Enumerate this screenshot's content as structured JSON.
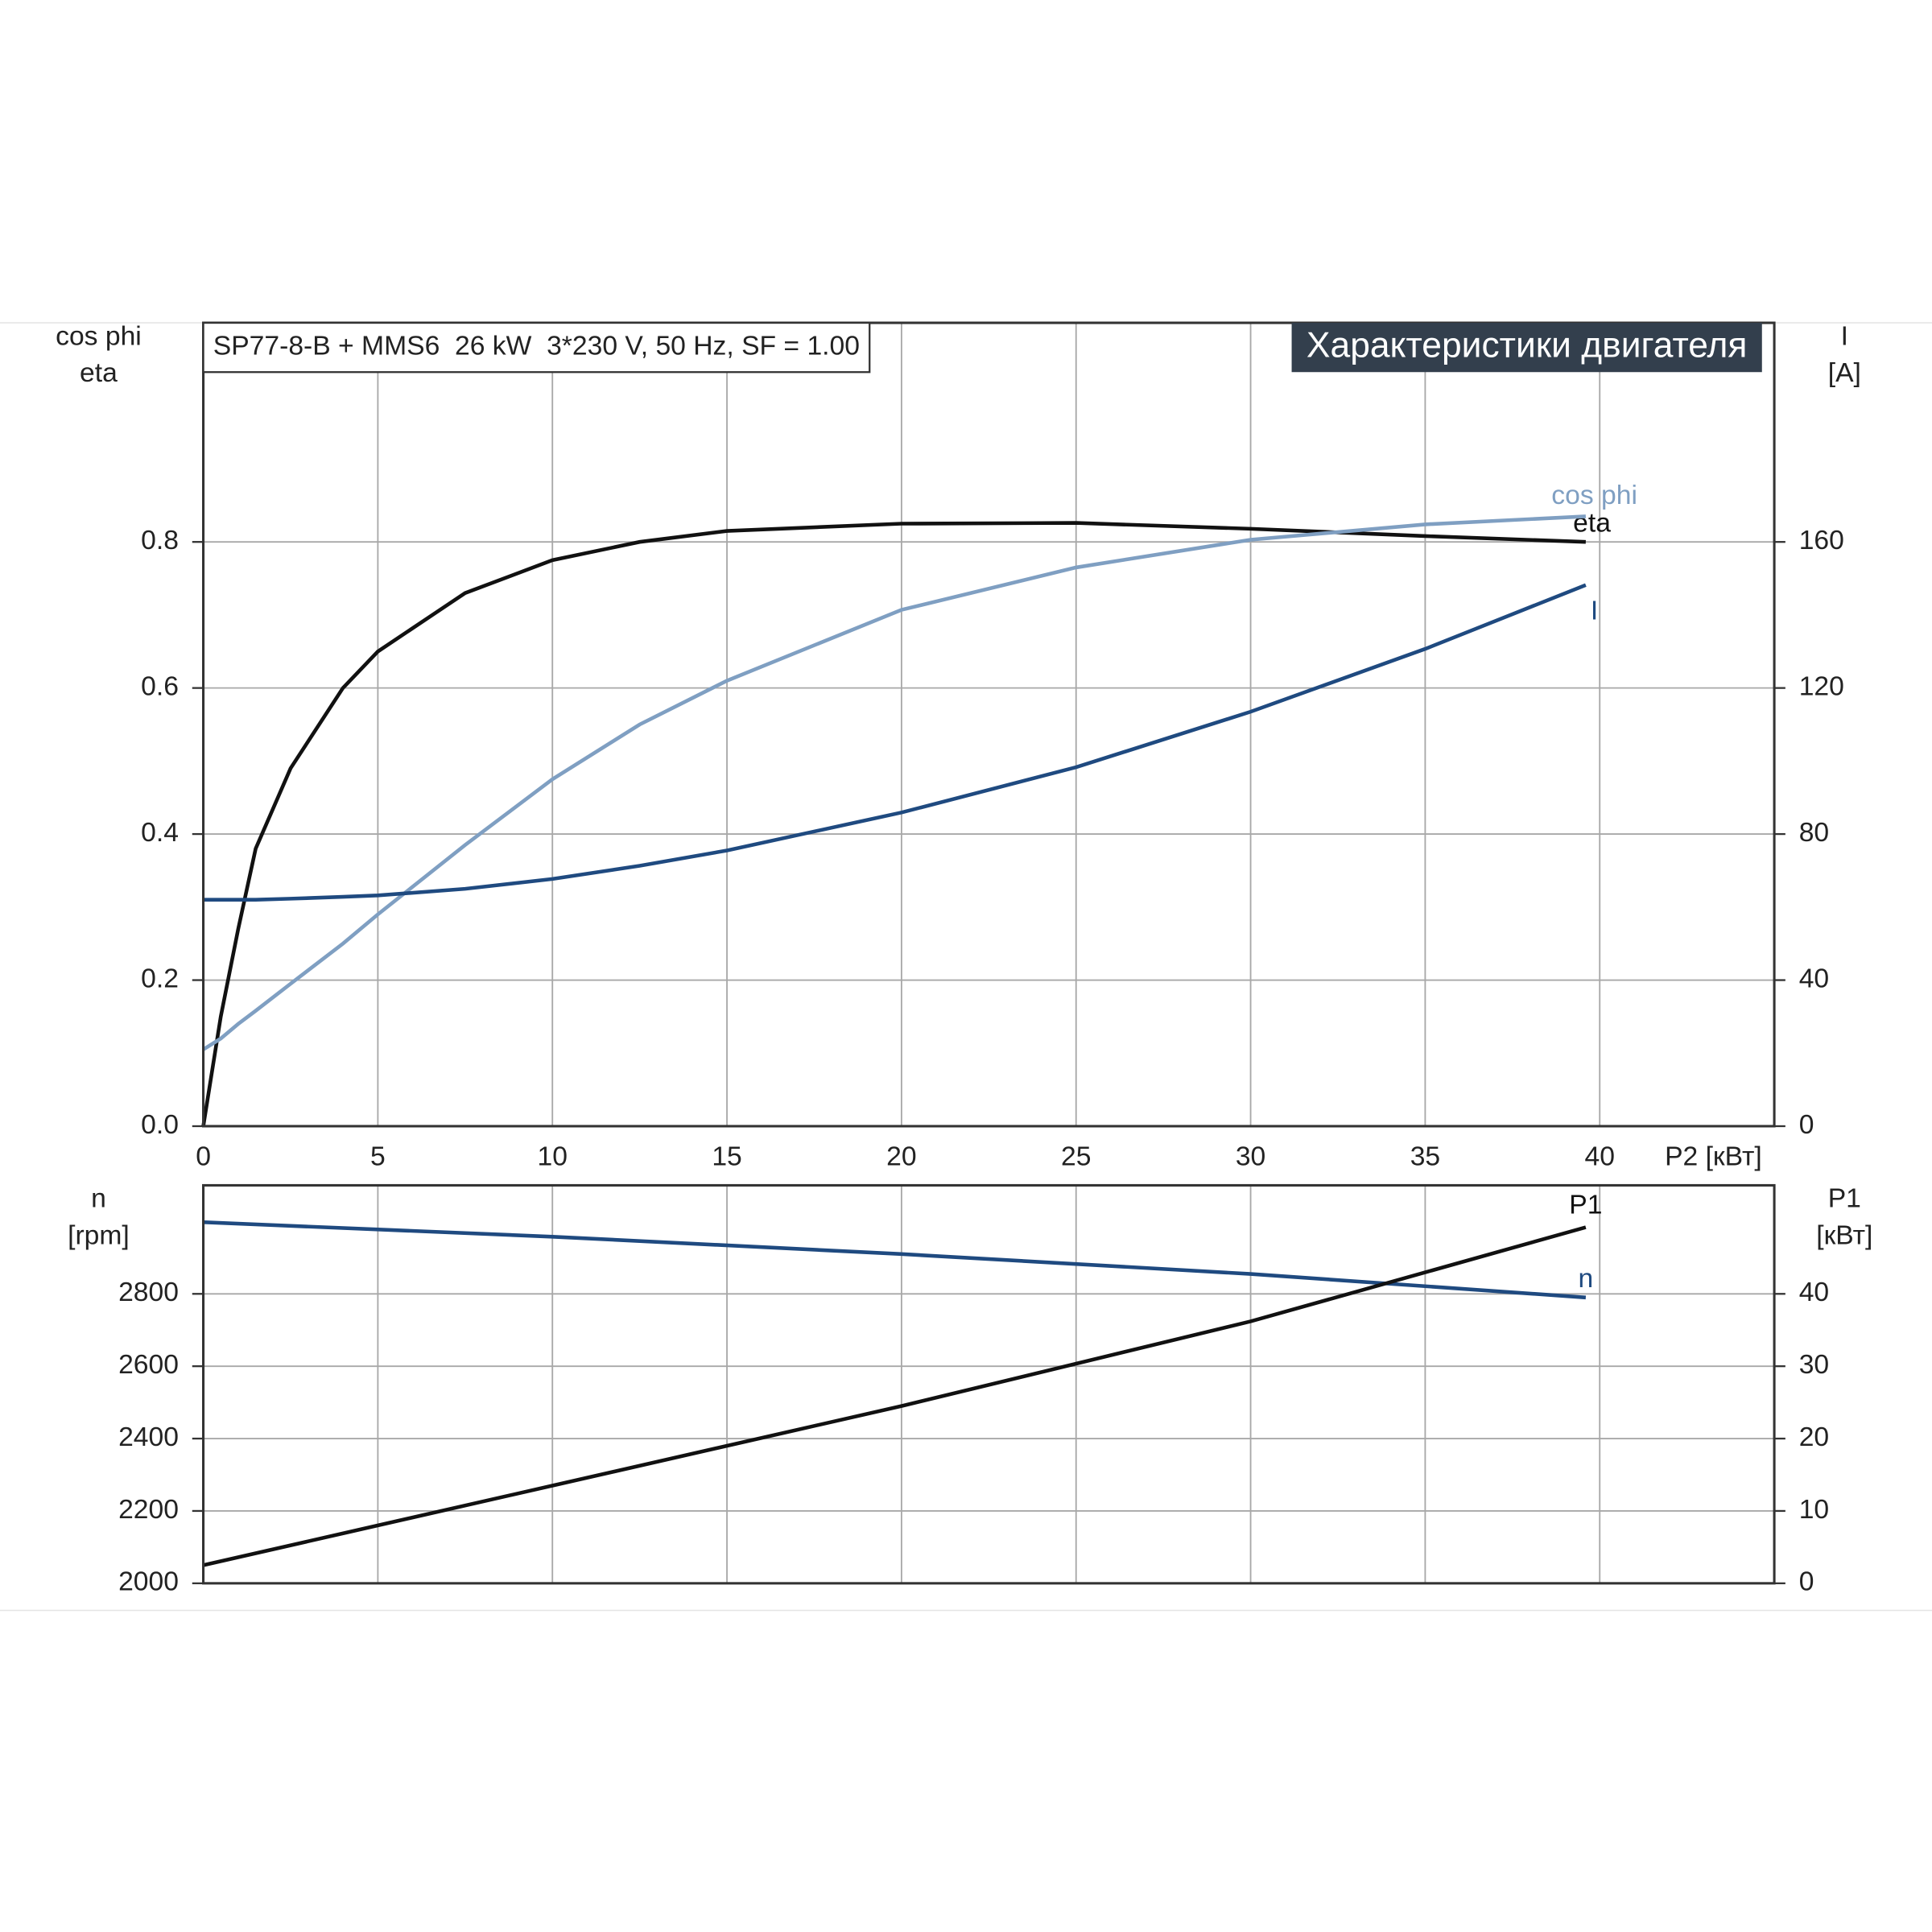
{
  "chart_data": [
    {
      "type": "line",
      "title": "SP77-8-B + MMS6  26 kW  3*230 V, 50 Hz, SF = 1.00",
      "subtitle": "Характеристики двигателя",
      "xlabel": "P2 [кВт]",
      "ylabel": [
        "cos phi",
        "eta"
      ],
      "y2label": [
        "I",
        "[A]"
      ],
      "xlim": [
        0,
        45
      ],
      "xticks": [
        0,
        5,
        10,
        15,
        20,
        25,
        30,
        35,
        40
      ],
      "ylim": [
        0,
        1.1
      ],
      "yticks": [
        {
          "value": 0,
          "label": "0.0"
        },
        0.2,
        0.4,
        0.6,
        0.8
      ],
      "y2lim": [
        0,
        220
      ],
      "y2ticks": [
        0,
        40,
        80,
        120,
        160
      ],
      "grid": true,
      "x": [
        0,
        0.5,
        1,
        1.5,
        2.5,
        4,
        5,
        7.5,
        10,
        12.5,
        15,
        20,
        25,
        30,
        35,
        39.6
      ],
      "series": [
        {
          "name": "eta",
          "color": "#111111",
          "values": [
            0,
            0.15,
            0.27,
            0.38,
            0.49,
            0.6,
            0.65,
            0.73,
            0.775,
            0.8,
            0.815,
            0.825,
            0.826,
            0.818,
            0.808,
            0.8
          ]
        },
        {
          "name": "cos phi",
          "color": "#7f9fc2",
          "values": [
            0.105,
            0.12,
            0.14,
            0.158,
            0.195,
            0.25,
            0.29,
            0.385,
            0.475,
            0.55,
            0.61,
            0.707,
            0.765,
            0.803,
            0.824,
            0.835
          ]
        },
        {
          "name": "I",
          "color": "#1f4a80",
          "axis": "y2",
          "values": [
            62,
            62,
            62,
            62,
            62.3,
            62.8,
            63.2,
            65,
            67.7,
            71.3,
            75.5,
            85.9,
            98.3,
            113.5,
            130.7,
            148.2
          ]
        }
      ]
    },
    {
      "type": "line",
      "ylabel": [
        "n",
        "[rpm]"
      ],
      "y2label": [
        "P1",
        "[кВт]"
      ],
      "xlim": [
        0,
        45
      ],
      "ylim": [
        2000,
        3100
      ],
      "yticks": [
        2000,
        2200,
        2400,
        2600,
        2800
      ],
      "y2lim": [
        0,
        55
      ],
      "y2ticks": [
        0,
        10,
        20,
        30,
        40
      ],
      "grid": true,
      "x": [
        0,
        10,
        20,
        30,
        39.6
      ],
      "series": [
        {
          "name": "n",
          "color": "#1f4a80",
          "values": [
            2998,
            2958,
            2910,
            2855,
            2790
          ]
        },
        {
          "name": "P1",
          "color": "#111111",
          "axis": "y2",
          "values": [
            2.5,
            13.5,
            24.5,
            36.2,
            49.2
          ]
        }
      ]
    }
  ]
}
